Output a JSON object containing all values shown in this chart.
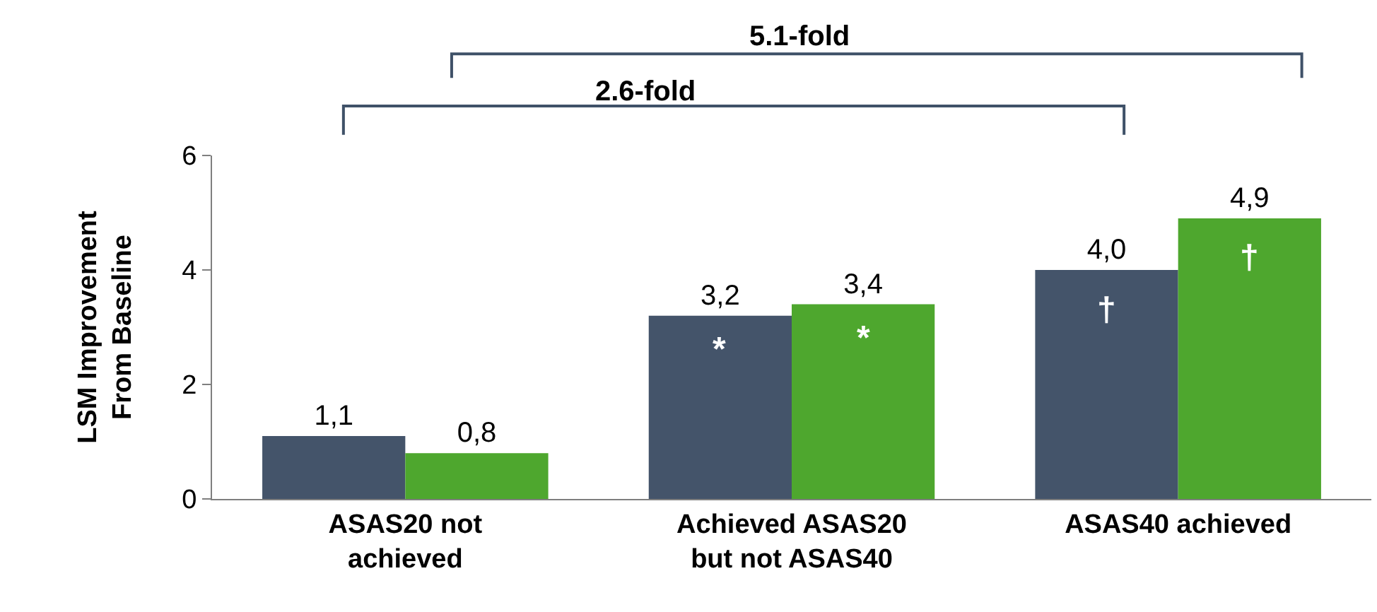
{
  "chart_data": {
    "type": "bar",
    "ylabel": "LSM Improvement\nFrom Baseline",
    "categories": [
      "ASAS20 not\nachieved",
      "Achieved ASAS20\nbut not ASAS40",
      "ASAS40 achieved"
    ],
    "series": [
      {
        "color": "#44546a",
        "values": [
          1.1,
          3.2,
          4.0
        ],
        "value_labels": [
          "1,1",
          "3,2",
          "4,0"
        ]
      },
      {
        "color": "#4ea72e",
        "values": [
          0.8,
          3.4,
          4.9
        ],
        "value_labels": [
          "0,8",
          "3,4",
          "4,9"
        ]
      }
    ],
    "ylim": [
      0,
      6
    ],
    "yticks": [
      0,
      2,
      4,
      6
    ],
    "grid": false,
    "legend": false,
    "annotations": [
      "5.1-fold",
      "2.6-fold",
      {
        "text": "*",
        "x": "Achieved ASAS20\nbut not ASAS40",
        "y": 2.6
      },
      {
        "text": "*",
        "x": "Achieved ASAS20\nbut not ASAS40",
        "y": 2.8
      },
      {
        "text": "†",
        "x": "ASAS40 achieved",
        "y": 3.3
      },
      {
        "text": "†",
        "x": "ASAS40 achieved",
        "y": 4.2
      }
    ]
  }
}
